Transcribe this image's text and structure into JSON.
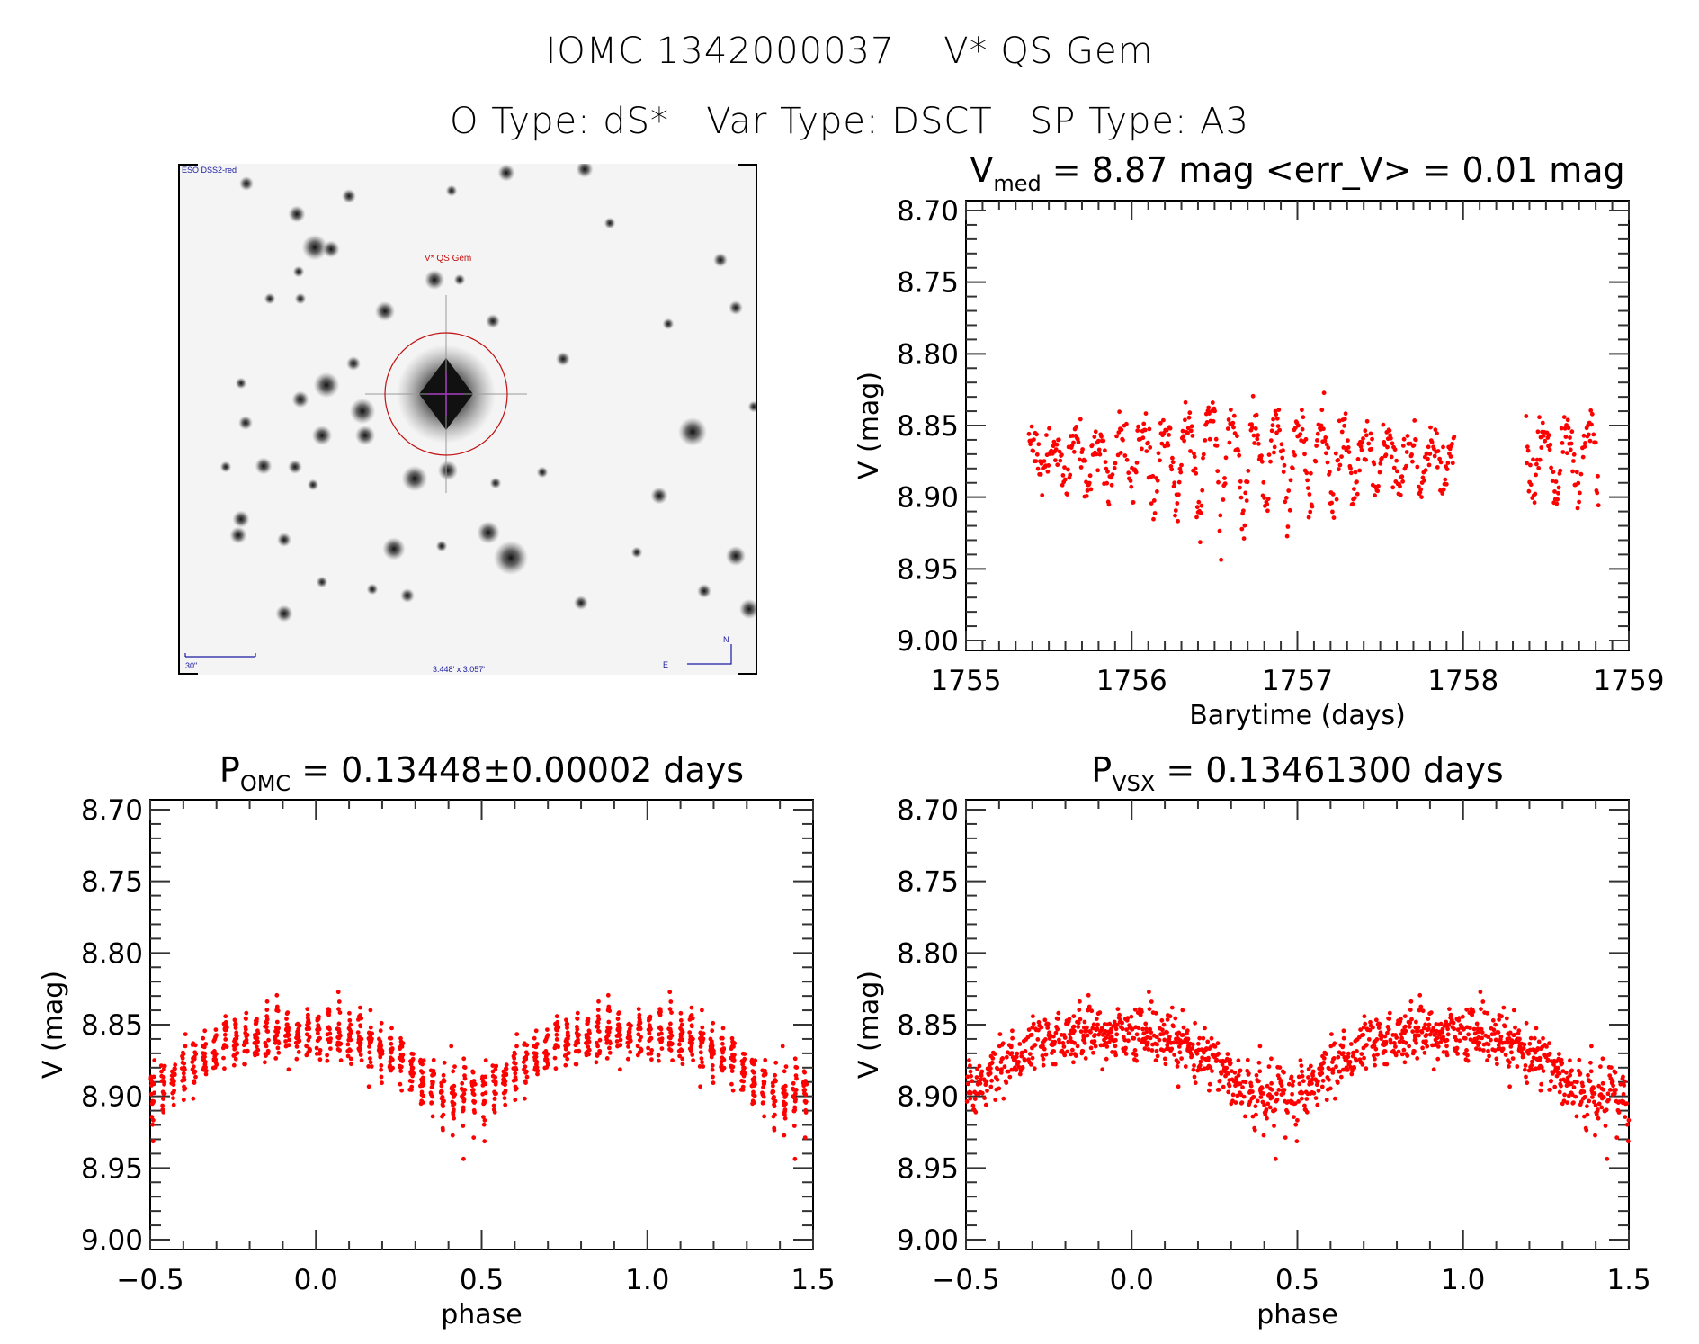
{
  "header": {
    "title": "IOMC 1342000037    V* QS Gem",
    "subtitle": "O Type: dS*   Var Type: DSCT   SP Type: A3"
  },
  "sky_image": {
    "survey_label": "ESO DSS2-red",
    "object_label": "V* QS Gem",
    "scale_label": "30\"",
    "size_label": "3.448' x 3.057'",
    "compass_north": "N",
    "compass_east": "E",
    "marker_color": "#c01010",
    "label_color": "#1a1aa0"
  },
  "chart_data": [
    {
      "id": "light-curve",
      "type": "scatter",
      "title_main": "V",
      "title_sub": "med",
      "title_rest": " = 8.87 mag <err_V> = 0.01 mag",
      "xlabel": "Barytime (days)",
      "ylabel": "V (mag)",
      "xlim": [
        1755,
        1759
      ],
      "ylim": [
        8.7,
        9.0
      ],
      "y_inverted": true,
      "xticks": [
        "1755",
        "1756",
        "1757",
        "1758",
        "1759"
      ],
      "yticks": [
        "8.70",
        "8.75",
        "8.80",
        "8.85",
        "8.90",
        "8.95",
        "9.00"
      ],
      "marker_color": "#ff0000",
      "model": {
        "segments": [
          [
            1755.38,
            1757.95
          ],
          [
            1758.38,
            1758.82
          ]
        ],
        "period_days": 0.13448,
        "cadence_days": 0.0042,
        "mean_mag": 8.873,
        "amplitude_mag": 0.045,
        "noise_mag": 0.012
      }
    },
    {
      "id": "phase-omc",
      "type": "scatter",
      "title_main": "P",
      "title_sub": "OMC",
      "title_rest": " = 0.13448±0.00002 days",
      "period_days": 0.13448,
      "xlabel": "phase",
      "ylabel": "V (mag)",
      "xlim": [
        -0.5,
        1.5
      ],
      "ylim": [
        8.7,
        9.0
      ],
      "y_inverted": true,
      "xticks": [
        "−0.5",
        "0.0",
        "0.5",
        "1.0",
        "1.5"
      ],
      "yticks": [
        "8.70",
        "8.75",
        "8.80",
        "8.85",
        "8.90",
        "8.95",
        "9.00"
      ],
      "marker_color": "#ff0000"
    },
    {
      "id": "phase-vsx",
      "type": "scatter",
      "title_main": "P",
      "title_sub": "VSX",
      "title_rest": " = 0.13461300 days",
      "period_days": 0.134613,
      "xlabel": "phase",
      "ylabel": "V (mag)",
      "xlim": [
        -0.5,
        1.5
      ],
      "ylim": [
        8.7,
        9.0
      ],
      "y_inverted": true,
      "xticks": [
        "−0.5",
        "0.0",
        "0.5",
        "1.0",
        "1.5"
      ],
      "yticks": [
        "8.70",
        "8.75",
        "8.80",
        "8.85",
        "8.90",
        "8.95",
        "9.00"
      ],
      "marker_color": "#ff0000"
    }
  ]
}
